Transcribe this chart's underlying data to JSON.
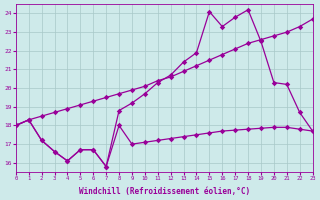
{
  "background_color": "#ceeaea",
  "grid_color": "#a8c8c8",
  "line_color": "#990099",
  "marker_size": 2.8,
  "xlim": [
    0,
    23
  ],
  "ylim": [
    15.5,
    24.5
  ],
  "yticks": [
    16,
    17,
    18,
    19,
    20,
    21,
    22,
    23,
    24
  ],
  "xticks": [
    0,
    1,
    2,
    3,
    4,
    5,
    6,
    7,
    8,
    9,
    10,
    11,
    12,
    13,
    14,
    15,
    16,
    17,
    18,
    19,
    20,
    21,
    22,
    23
  ],
  "xlabel": "Windchill (Refroidissement éolien,°C)",
  "s1_x": [
    0,
    1,
    2,
    3,
    4,
    5,
    6,
    7,
    8,
    9,
    10,
    11,
    12,
    13,
    14,
    15,
    16,
    17,
    18,
    19,
    20,
    21,
    22,
    23
  ],
  "s1_y": [
    18.0,
    18.3,
    17.2,
    16.6,
    16.1,
    16.7,
    16.7,
    15.8,
    18.0,
    17.0,
    17.1,
    17.2,
    17.3,
    17.4,
    17.5,
    17.6,
    17.7,
    17.75,
    17.8,
    17.85,
    17.9,
    17.9,
    17.8,
    17.7
  ],
  "s2_x": [
    0,
    1,
    2,
    3,
    4,
    5,
    6,
    7,
    8,
    9,
    10,
    11,
    12,
    13,
    14,
    15,
    16,
    17,
    18,
    19,
    20,
    21,
    22,
    23
  ],
  "s2_y": [
    18.0,
    18.3,
    17.2,
    16.6,
    16.1,
    16.7,
    16.7,
    15.8,
    18.8,
    19.2,
    19.7,
    20.3,
    20.7,
    21.4,
    21.9,
    24.1,
    23.3,
    23.8,
    24.2,
    22.5,
    20.3,
    20.2,
    18.7,
    17.7
  ],
  "s3_x": [
    0,
    1,
    2,
    3,
    4,
    5,
    6,
    7,
    8,
    9,
    10,
    11,
    12,
    13,
    14,
    15,
    16,
    17,
    18,
    19,
    20,
    21,
    22,
    23
  ],
  "s3_y": [
    18.0,
    18.3,
    18.5,
    18.7,
    18.9,
    19.1,
    19.3,
    19.5,
    19.7,
    19.9,
    20.1,
    20.4,
    20.6,
    20.9,
    21.2,
    21.5,
    21.8,
    22.1,
    22.4,
    22.6,
    22.8,
    23.0,
    23.3,
    23.7
  ]
}
